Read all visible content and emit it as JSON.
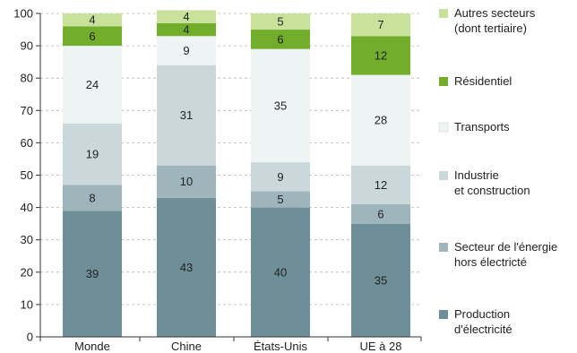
{
  "chart_data": {
    "type": "bar",
    "stacked": true,
    "categories": [
      "Monde",
      "Chine",
      "États-Unis",
      "UE à 28"
    ],
    "ylim": [
      0,
      100
    ],
    "yticks": [
      0,
      10,
      20,
      30,
      40,
      50,
      60,
      70,
      80,
      90,
      100
    ],
    "grid": "horizontal dashed",
    "legend_position": "right",
    "series": [
      {
        "name": "Production d'électricité",
        "legend_lines": [
          "Production",
          "d'électricité"
        ],
        "color": "#6f8f98",
        "values": [
          39,
          43,
          40,
          35
        ]
      },
      {
        "name": "Secteur de l'énergie hors électricité",
        "legend_lines": [
          "Secteur de l'énergie",
          "hors électricté"
        ],
        "color": "#9fb5bc",
        "values": [
          8,
          10,
          5,
          6
        ]
      },
      {
        "name": "Industrie et construction",
        "legend_lines": [
          "Industrie",
          "et construction"
        ],
        "color": "#cad8dc",
        "values": [
          19,
          31,
          9,
          12
        ]
      },
      {
        "name": "Transports",
        "legend_lines": [
          "Transports"
        ],
        "color": "#eef3f4",
        "values": [
          24,
          9,
          35,
          28
        ]
      },
      {
        "name": "Résidentiel",
        "legend_lines": [
          "Résidentiel"
        ],
        "color": "#72ad2c",
        "values": [
          6,
          4,
          6,
          12
        ]
      },
      {
        "name": "Autres secteurs (dont tertiaire)",
        "legend_lines": [
          "Autres secteurs",
          "(dont tertiaire)"
        ],
        "color": "#c8e29b",
        "values": [
          4,
          4,
          5,
          7
        ]
      }
    ]
  }
}
